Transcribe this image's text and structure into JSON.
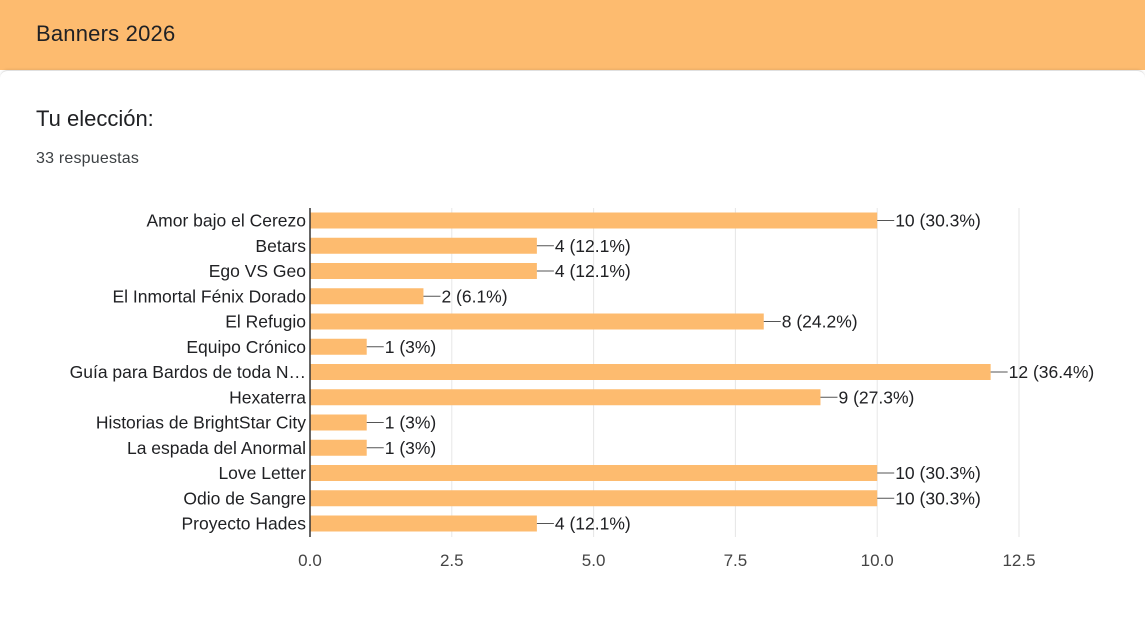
{
  "header": {
    "title": "Banners 2026"
  },
  "question": {
    "title": "Tu elección:",
    "responses": "33 respuestas"
  },
  "colors": {
    "header_bg": "#fdbb6f",
    "bar": "#fdbb6f",
    "grid": "#e6e6e6",
    "axis": "#333333"
  },
  "chart_data": {
    "type": "bar",
    "orientation": "horizontal",
    "categories": [
      "Amor bajo el Cerezo",
      "Betars",
      "Ego VS Geo",
      "El Inmortal Fénix Dorado",
      "El Refugio",
      "Equipo Crónico",
      "Guía para Bardos de toda N…",
      "Hexaterra",
      "Historias de BrightStar City",
      "La espada del Anormal",
      "Love Letter",
      "Odio de Sangre",
      "Proyecto Hades"
    ],
    "values": [
      10,
      4,
      4,
      2,
      8,
      1,
      12,
      9,
      1,
      1,
      10,
      10,
      4
    ],
    "data_labels": [
      "10 (30.3%)",
      "4 (12.1%)",
      "4 (12.1%)",
      "2 (6.1%)",
      "8 (24.2%)",
      "1 (3%)",
      "12 (36.4%)",
      "9 (27.3%)",
      "1 (3%)",
      "1 (3%)",
      "10 (30.3%)",
      "10 (30.3%)",
      "4 (12.1%)"
    ],
    "xlim": [
      0,
      12.5
    ],
    "xticks": [
      "0.0",
      "2.5",
      "5.0",
      "7.5",
      "10.0",
      "12.5"
    ],
    "xtick_values": [
      0,
      2.5,
      5,
      7.5,
      10,
      12.5
    ],
    "grid": true,
    "legend": "none"
  }
}
